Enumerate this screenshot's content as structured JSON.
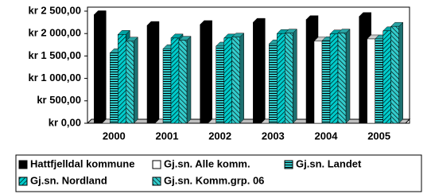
{
  "chart_data": {
    "type": "bar",
    "categories": [
      "2000",
      "2001",
      "2002",
      "2003",
      "2004",
      "2005"
    ],
    "series": [
      {
        "name": "Hattfjelldal kommune",
        "color": "#000000",
        "values": [
          2420,
          2180,
          2200,
          2250,
          2310,
          2380
        ]
      },
      {
        "name": "Gj.sn. Alle komm.",
        "color": "#ffffff",
        "values": [
          0,
          0,
          0,
          0,
          1830,
          1880
        ]
      },
      {
        "name": "Gj.sn. Landet",
        "color": "#33cccc",
        "values": [
          1570,
          1660,
          1720,
          1770,
          1840,
          1880
        ]
      },
      {
        "name": "Gj.sn. Nordland",
        "color": "#00cccc",
        "values": [
          1980,
          1900,
          1900,
          2000,
          1990,
          2060
        ]
      },
      {
        "name": "Gj.sn. Komm.grp. 06",
        "color": "#33cccc",
        "values": [
          1830,
          1850,
          1920,
          2010,
          2010,
          2160
        ]
      }
    ],
    "ylim": [
      0,
      2500
    ],
    "yticks": [
      {
        "value": 0,
        "label": "kr 0,00"
      },
      {
        "value": 500,
        "label": "kr 500,00"
      },
      {
        "value": 1000,
        "label": "kr 1 000,00"
      },
      {
        "value": 1500,
        "label": "kr 1 500,00"
      },
      {
        "value": 2000,
        "label": "kr 2 000,00"
      },
      {
        "value": 2500,
        "label": "kr 2 500,00"
      }
    ]
  }
}
